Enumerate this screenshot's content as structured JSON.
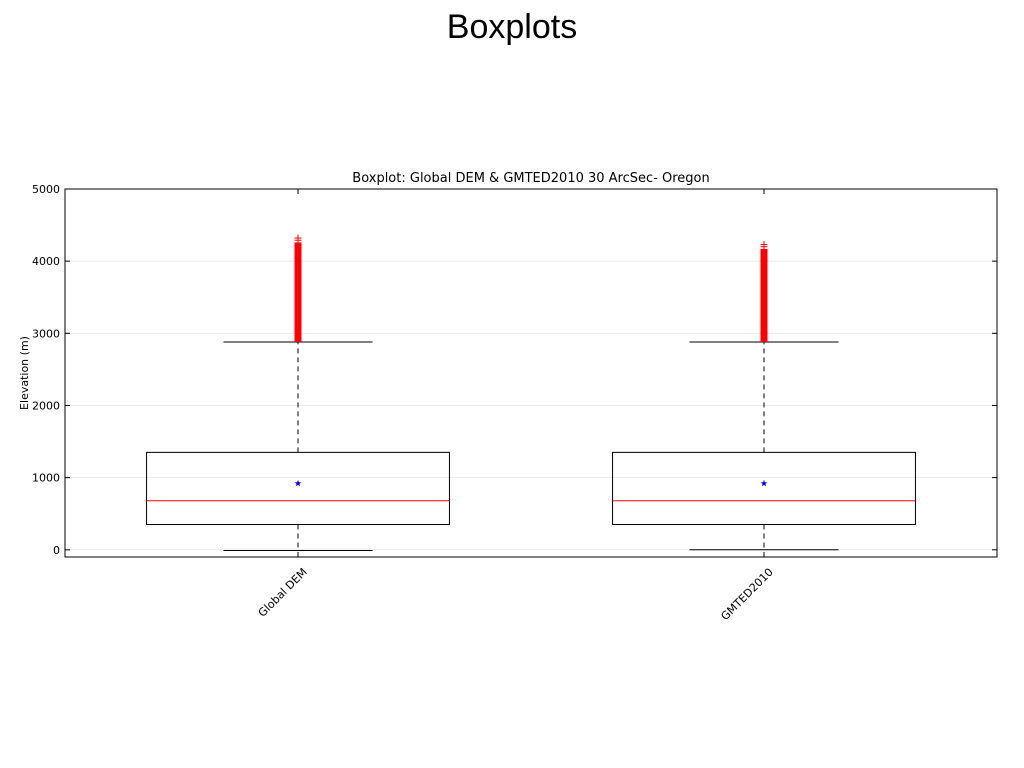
{
  "slide": {
    "title": "Boxplots"
  },
  "chart_data": {
    "type": "boxplot",
    "title": "Boxplot: Global DEM & GMTED2010 30 ArcSec- Oregon",
    "xlabel": "",
    "ylabel": "Elevation (m)",
    "ylim": [
      -100,
      5000
    ],
    "yticks": [
      0,
      1000,
      2000,
      3000,
      4000,
      5000
    ],
    "grid": true,
    "categories": [
      "Global DEM",
      "GMTED2010"
    ],
    "boxes": [
      {
        "name": "Global DEM",
        "whisker_low": -10,
        "q1": 350,
        "median": 680,
        "q3": 1350,
        "whisker_high": 2880,
        "mean": 920,
        "outliers_range": [
          2880,
          4320
        ]
      },
      {
        "name": "GMTED2010",
        "whisker_low": 0,
        "q1": 350,
        "median": 680,
        "q3": 1350,
        "whisker_high": 2880,
        "mean": 920,
        "outliers_range": [
          2880,
          4230
        ]
      }
    ],
    "colors": {
      "box": "#000000",
      "median": "#ff0000",
      "mean": "#0000ff",
      "outlier": "#ff0000",
      "grid": "#e6e6e6"
    }
  }
}
